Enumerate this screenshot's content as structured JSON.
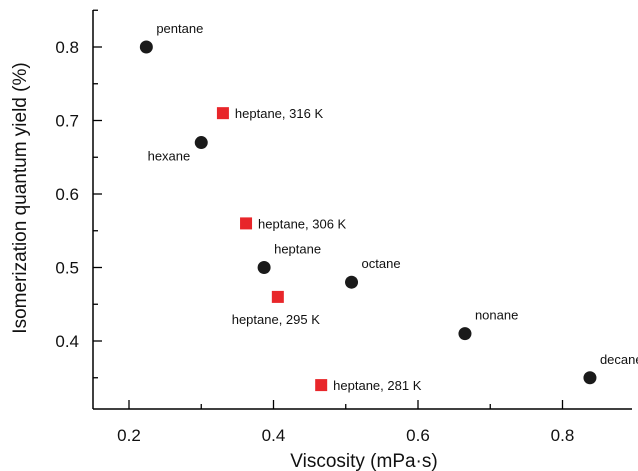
{
  "chart_data": {
    "type": "scatter",
    "xlabel": "Viscosity (mPa·s)",
    "ylabel": "Isomerization quantum yield (%)",
    "xlim": [
      0.15,
      0.9
    ],
    "ylim": [
      0.31,
      0.86
    ],
    "x_ticks": [
      0.2,
      0.4,
      0.6,
      0.8
    ],
    "y_ticks": [
      0.4,
      0.5,
      0.6,
      0.7,
      0.8
    ],
    "x_tick_labels": [
      "0.2",
      "0.4",
      "0.6",
      "0.8"
    ],
    "y_tick_labels": [
      "0.4",
      "0.5",
      "0.6",
      "0.7",
      "0.8"
    ],
    "grid": false,
    "series": [
      {
        "marker": "circle",
        "color": "#1a1a1a",
        "points": [
          {
            "x": 0.224,
            "y": 0.8,
            "label": "pentane",
            "label_pos": "above-right"
          },
          {
            "x": 0.3,
            "y": 0.67,
            "label": "hexane",
            "label_pos": "below-left"
          },
          {
            "x": 0.387,
            "y": 0.5,
            "label": "heptane",
            "label_pos": "above-right"
          },
          {
            "x": 0.508,
            "y": 0.48,
            "label": "octane",
            "label_pos": "above-right"
          },
          {
            "x": 0.665,
            "y": 0.41,
            "label": "nonane",
            "label_pos": "above-right"
          },
          {
            "x": 0.838,
            "y": 0.35,
            "label": "decane",
            "label_pos": "above-right"
          }
        ]
      },
      {
        "marker": "square",
        "color": "#e8262a",
        "points": [
          {
            "x": 0.33,
            "y": 0.71,
            "label": "heptane, 316 K",
            "label_pos": "right"
          },
          {
            "x": 0.362,
            "y": 0.56,
            "label": "heptane, 306 K",
            "label_pos": "right"
          },
          {
            "x": 0.406,
            "y": 0.46,
            "label": "heptane, 295 K",
            "label_pos": "below"
          },
          {
            "x": 0.466,
            "y": 0.34,
            "label": "heptane, 281 K",
            "label_pos": "right"
          }
        ]
      }
    ]
  }
}
